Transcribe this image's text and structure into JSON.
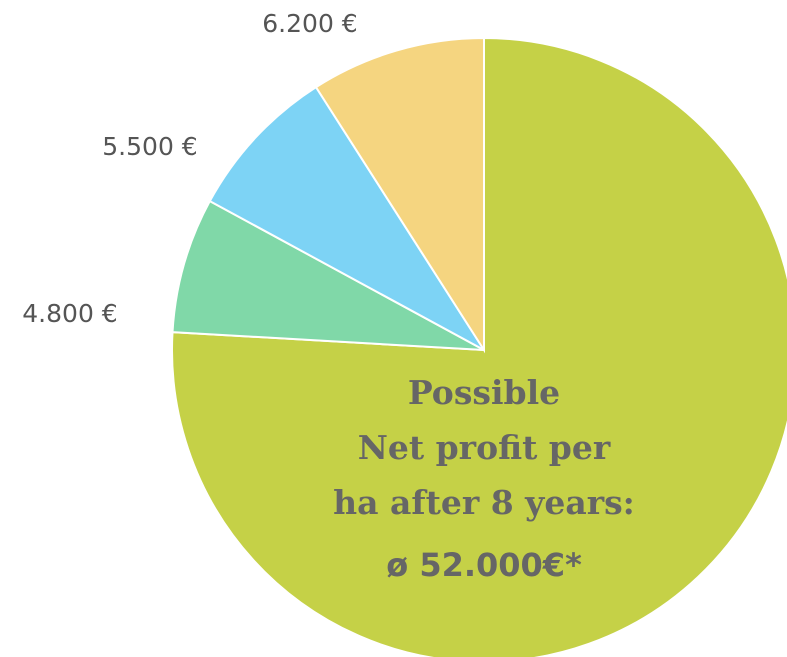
{
  "chart_data": {
    "type": "pie",
    "values": [
      52000,
      4800,
      5500,
      6200
    ],
    "value_labels": [
      "ø 52.000€*",
      "4.800 €",
      "5.500 €",
      "6.200 €"
    ],
    "colors": [
      "#c5d147",
      "#80d8a8",
      "#7dd3f5",
      "#f5d580"
    ],
    "annotation": [
      "Possible",
      "Net profit per",
      "ha after 8 years:"
    ]
  }
}
